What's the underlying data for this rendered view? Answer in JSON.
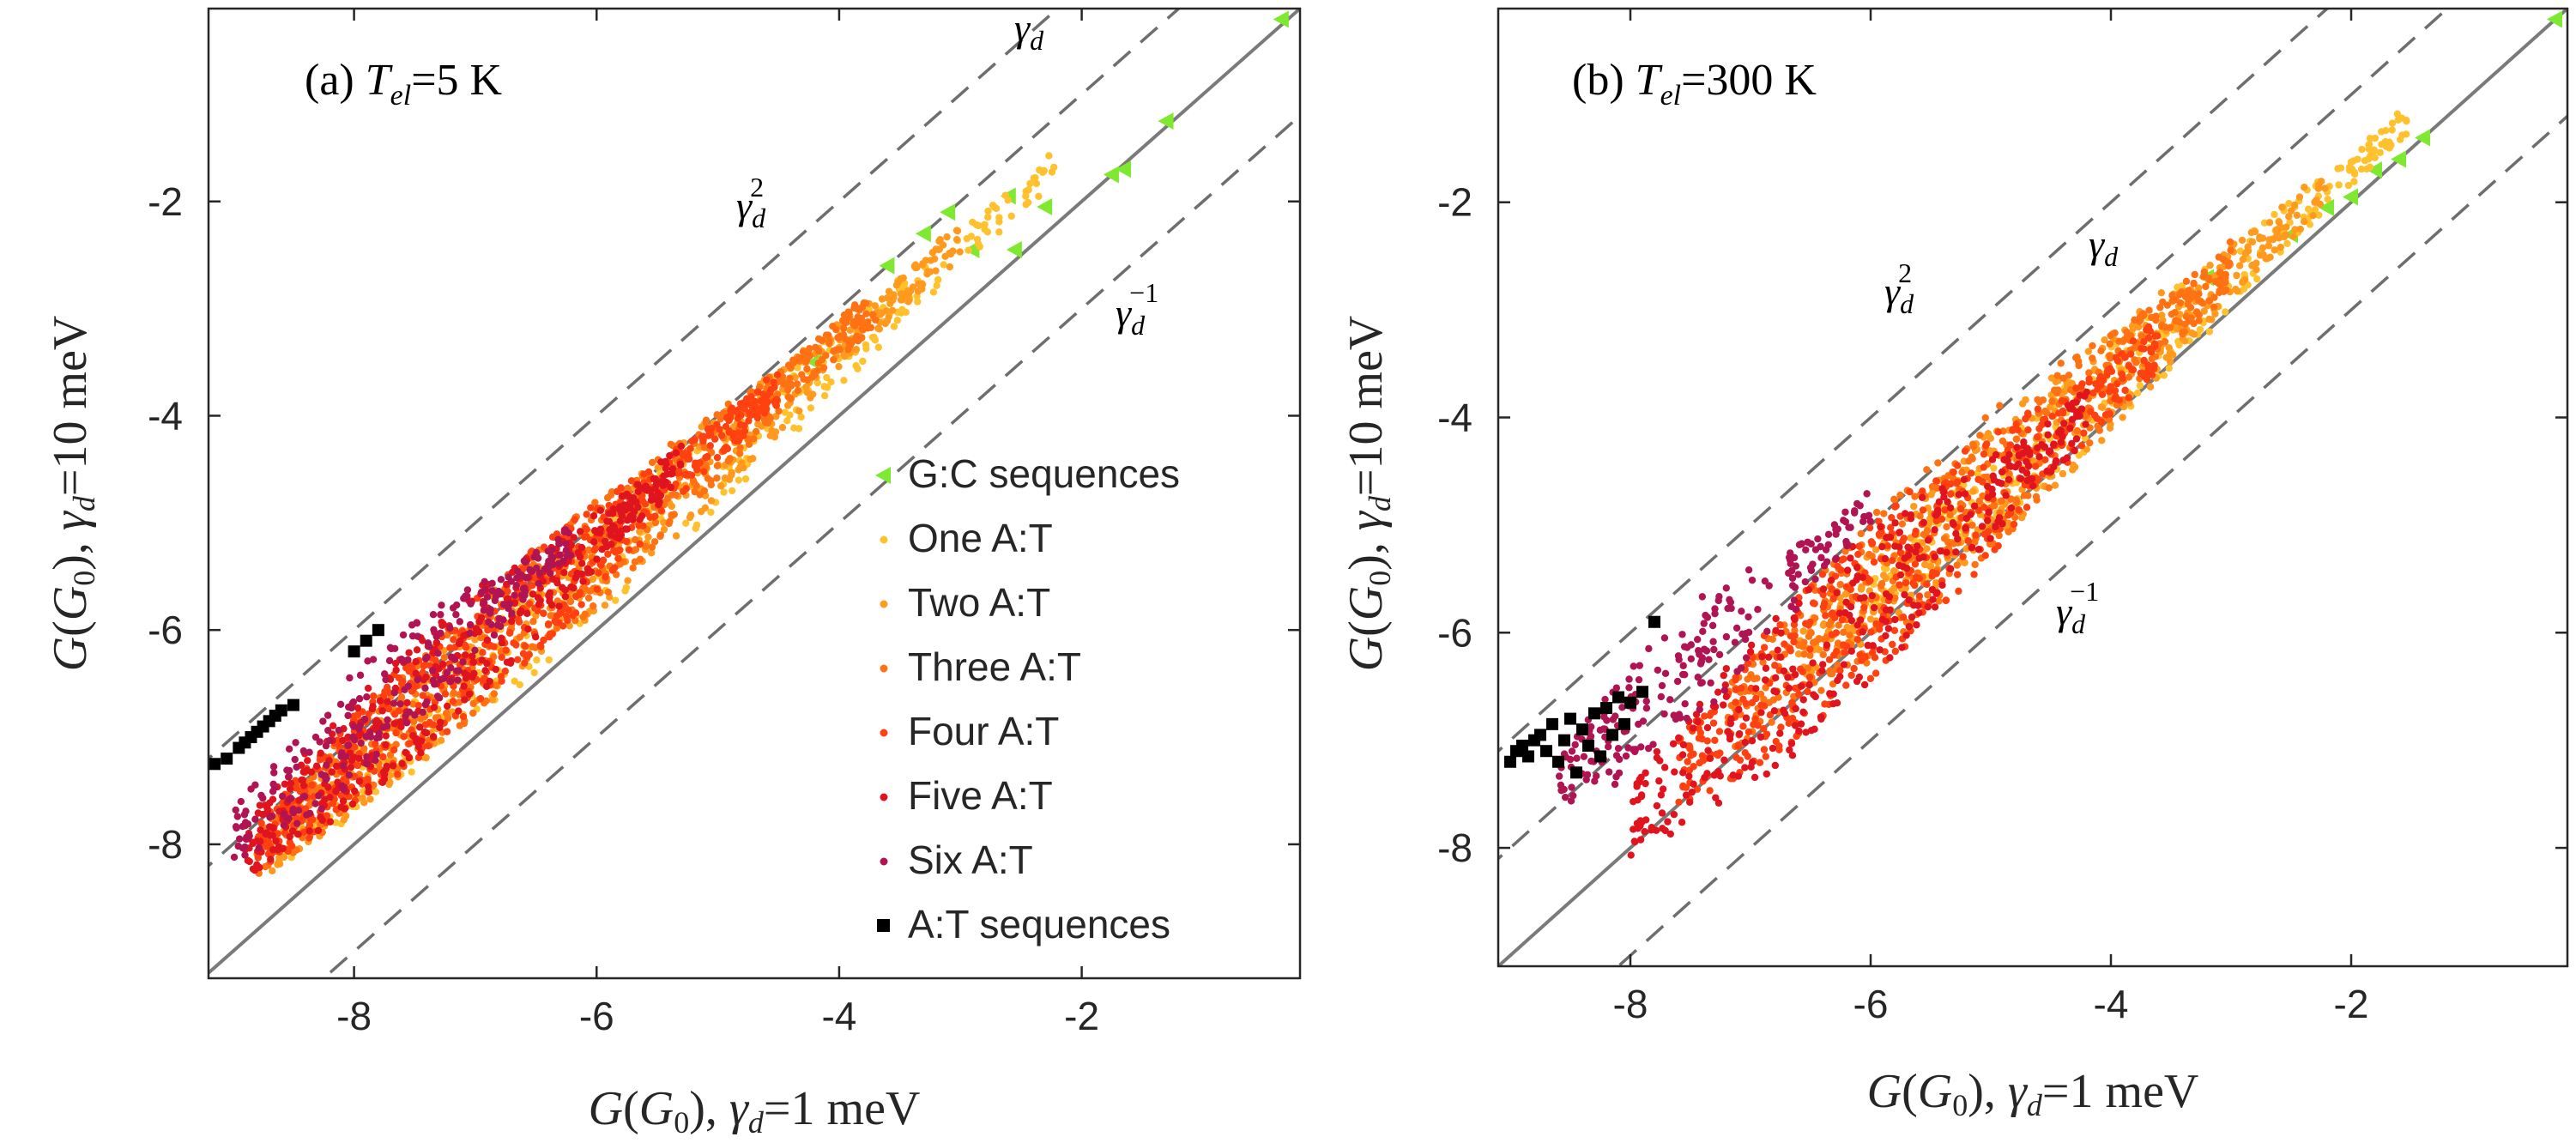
{
  "chart_data": [
    {
      "type": "scatter",
      "panel": "(a)",
      "title_prefix": "(a) ",
      "title_var": "T",
      "title_sub": "el",
      "title_value": "=5 K",
      "xlabel": "G(G0), γd=1 meV",
      "ylabel": "G(G0), γd=10 meV",
      "xlim": [
        -9.2,
        -0.2
      ],
      "ylim": [
        -9.25,
        -0.2
      ],
      "xticks": [
        -8,
        -6,
        -4,
        -2
      ],
      "yticks": [
        -8,
        -6,
        -4,
        -2
      ],
      "reference_lines": [
        {
          "name": "gamma_d_squared",
          "label": "γd2",
          "offset": 2,
          "style": "dashed"
        },
        {
          "name": "gamma_d",
          "label": "γd",
          "offset": 1,
          "style": "dashed"
        },
        {
          "name": "identity",
          "label": "",
          "offset": 0,
          "style": "solid"
        },
        {
          "name": "gamma_d_inverse",
          "label": "γd−1",
          "offset": -1,
          "style": "dashed"
        }
      ],
      "series": [
        {
          "name": "G:C sequences",
          "color": "#7fe830",
          "marker": "triangle-left",
          "points": [
            [
              -0.35,
              -0.3
            ],
            [
              -1.3,
              -1.25
            ],
            [
              -1.65,
              -1.7
            ],
            [
              -1.75,
              -1.75
            ],
            [
              -2.3,
              -2.05
            ],
            [
              -2.55,
              -2.45
            ],
            [
              -2.6,
              -1.95
            ],
            [
              -2.9,
              -2.45
            ],
            [
              -3.1,
              -2.1
            ],
            [
              -3.3,
              -2.3
            ],
            [
              -3.6,
              -2.6
            ],
            [
              -4.2,
              -3.5
            ]
          ]
        },
        {
          "name": "One A:T",
          "color": "#ffc12e",
          "marker": "dot",
          "band": {
            "x": [
              -8.6,
              -2.2
            ],
            "dy_lo": 0.1,
            "dy_hi": 1.0,
            "count": 320
          }
        },
        {
          "name": "Two A:T",
          "color": "#ff9a1f",
          "marker": "dot",
          "band": {
            "x": [
              -8.7,
              -3.0
            ],
            "dy_lo": 0.15,
            "dy_hi": 1.15,
            "count": 480
          }
        },
        {
          "name": "Three A:T",
          "color": "#ff7214",
          "marker": "dot",
          "band": {
            "x": [
              -8.8,
              -3.7
            ],
            "dy_lo": 0.2,
            "dy_hi": 1.25,
            "count": 620
          }
        },
        {
          "name": "Four A:T",
          "color": "#ff4010",
          "marker": "dot",
          "band": {
            "x": [
              -8.8,
              -4.5
            ],
            "dy_lo": 0.25,
            "dy_hi": 1.3,
            "count": 620
          }
        },
        {
          "name": "Five A:T",
          "color": "#e0141e",
          "marker": "dot",
          "band": {
            "x": [
              -8.9,
              -5.3
            ],
            "dy_lo": 0.3,
            "dy_hi": 1.4,
            "count": 420
          }
        },
        {
          "name": "Six A:T",
          "color": "#b01452",
          "marker": "dot",
          "band": {
            "x": [
              -9.0,
              -6.2
            ],
            "dy_lo": 0.55,
            "dy_hi": 1.6,
            "count": 260
          }
        },
        {
          "name": "A:T sequences",
          "color": "#000000",
          "marker": "square",
          "points": [
            [
              -9.15,
              -7.25
            ],
            [
              -9.05,
              -7.2
            ],
            [
              -8.95,
              -7.1
            ],
            [
              -8.9,
              -7.05
            ],
            [
              -8.85,
              -7.0
            ],
            [
              -8.8,
              -6.95
            ],
            [
              -8.75,
              -6.9
            ],
            [
              -8.7,
              -6.85
            ],
            [
              -8.65,
              -6.8
            ],
            [
              -8.6,
              -6.75
            ],
            [
              -8.5,
              -6.7
            ],
            [
              -7.8,
              -6.0
            ],
            [
              -7.9,
              -6.1
            ],
            [
              -8.0,
              -6.2
            ]
          ]
        }
      ],
      "annotation_labels": {
        "gamma_d_squared": "γ",
        "gamma_d": "γ",
        "gamma_d_inverse": "γ"
      },
      "legend": {
        "position": "inside-lower-right",
        "entries": [
          "G:C sequences",
          "One A:T",
          "Two A:T",
          "Three A:T",
          "Four A:T",
          "Five A:T",
          "Six A:T",
          "A:T sequences"
        ]
      }
    },
    {
      "type": "scatter",
      "panel": "(b)",
      "title_prefix": "(b) ",
      "title_var": "T",
      "title_sub": "el",
      "title_value": "=300 K",
      "xlabel": "G(G0), γd=1 meV",
      "ylabel": "G(G0), γd=10 meV",
      "xlim": [
        -9.1,
        -0.2
      ],
      "ylim": [
        -9.1,
        -0.2
      ],
      "xticks": [
        -8,
        -6,
        -4,
        -2
      ],
      "yticks": [
        -8,
        -6,
        -4,
        -2
      ],
      "reference_lines": [
        {
          "name": "gamma_d_squared",
          "label": "γd2",
          "offset": 2,
          "style": "dashed"
        },
        {
          "name": "gamma_d",
          "label": "γd",
          "offset": 1,
          "style": "dashed"
        },
        {
          "name": "identity",
          "label": "",
          "offset": 0,
          "style": "solid"
        },
        {
          "name": "gamma_d_inverse",
          "label": "γd−1",
          "offset": -1,
          "style": "dashed"
        }
      ],
      "series": [
        {
          "name": "G:C sequences",
          "color": "#7fe830",
          "marker": "triangle-left",
          "points": [
            [
              -0.3,
              -0.3
            ],
            [
              -1.4,
              -1.4
            ],
            [
              -1.6,
              -1.6
            ],
            [
              -1.8,
              -1.7
            ],
            [
              -2.0,
              -1.95
            ],
            [
              -2.2,
              -2.05
            ],
            [
              -2.5,
              -2.3
            ],
            [
              -3.2,
              -2.7
            ]
          ]
        },
        {
          "name": "One A:T",
          "color": "#ffc12e",
          "marker": "dot",
          "band": {
            "x": [
              -6.0,
              -1.5
            ],
            "dy_lo": -0.1,
            "dy_hi": 0.7,
            "count": 300
          }
        },
        {
          "name": "Two A:T",
          "color": "#ff9a1f",
          "marker": "dot",
          "band": {
            "x": [
              -6.6,
              -2.2
            ],
            "dy_lo": -0.2,
            "dy_hi": 0.9,
            "count": 420
          }
        },
        {
          "name": "Three A:T",
          "color": "#ff7214",
          "marker": "dot",
          "band": {
            "x": [
              -7.2,
              -3.0
            ],
            "dy_lo": -0.3,
            "dy_hi": 1.1,
            "count": 520
          }
        },
        {
          "name": "Four A:T",
          "color": "#ff4010",
          "marker": "dot",
          "band": {
            "x": [
              -7.6,
              -3.6
            ],
            "dy_lo": -0.45,
            "dy_hi": 1.0,
            "count": 480
          }
        },
        {
          "name": "Five A:T",
          "color": "#e0141e",
          "marker": "dot",
          "band": {
            "x": [
              -8.0,
              -4.2
            ],
            "dy_lo": -0.5,
            "dy_hi": 1.0,
            "count": 360
          }
        },
        {
          "name": "Six A:T",
          "color": "#b01452",
          "marker": "dot",
          "band": {
            "x": [
              -8.6,
              -6.0
            ],
            "dy_lo": 0.6,
            "dy_hi": 1.75,
            "count": 220
          }
        },
        {
          "name": "A:T sequences",
          "color": "#000000",
          "marker": "square",
          "points": [
            [
              -9.0,
              -7.2
            ],
            [
              -8.95,
              -7.1
            ],
            [
              -8.9,
              -7.05
            ],
            [
              -8.85,
              -7.15
            ],
            [
              -8.8,
              -7.0
            ],
            [
              -8.75,
              -6.95
            ],
            [
              -8.7,
              -7.1
            ],
            [
              -8.65,
              -6.85
            ],
            [
              -8.6,
              -7.2
            ],
            [
              -8.55,
              -7.0
            ],
            [
              -8.5,
              -6.8
            ],
            [
              -8.45,
              -7.3
            ],
            [
              -8.4,
              -6.9
            ],
            [
              -8.35,
              -7.05
            ],
            [
              -8.3,
              -6.75
            ],
            [
              -8.25,
              -7.15
            ],
            [
              -8.2,
              -6.7
            ],
            [
              -8.15,
              -6.95
            ],
            [
              -8.1,
              -6.6
            ],
            [
              -8.05,
              -6.85
            ],
            [
              -8.0,
              -6.65
            ],
            [
              -7.9,
              -6.55
            ],
            [
              -7.8,
              -5.9
            ]
          ]
        }
      ],
      "annotation_labels": {
        "gamma_d_squared": "γ",
        "gamma_d": "γ",
        "gamma_d_inverse": "γ"
      }
    }
  ],
  "text": {
    "panel_a_title": "(a) Tel=5 K",
    "panel_b_title": "(b) Tel=300 K",
    "gamma_symbol": "γ",
    "sub_d": "d",
    "sup_2": "2",
    "sup_minus_1": "−1"
  }
}
